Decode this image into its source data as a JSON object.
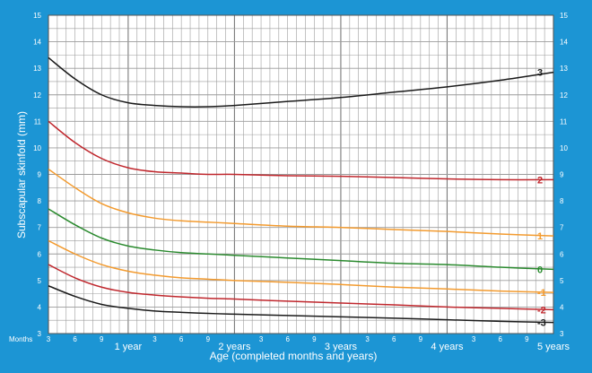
{
  "chart_data": {
    "type": "line",
    "title": "",
    "xlabel": "Age (completed months and years)",
    "ylabel": "Subscapular skinfold (mm)",
    "x_unit_label": "Months",
    "xlim": [
      3,
      60
    ],
    "ylim": [
      3,
      15
    ],
    "y_ticks": [
      3,
      4,
      5,
      6,
      7,
      8,
      9,
      10,
      11,
      12,
      13,
      14,
      15
    ],
    "x_ticks": [
      {
        "month": 3,
        "label": "3"
      },
      {
        "month": 6,
        "label": "6"
      },
      {
        "month": 9,
        "label": "9"
      },
      {
        "month": 12,
        "label": "1 year"
      },
      {
        "month": 15,
        "label": "3"
      },
      {
        "month": 18,
        "label": "6"
      },
      {
        "month": 21,
        "label": "9"
      },
      {
        "month": 24,
        "label": "2 years"
      },
      {
        "month": 27,
        "label": "3"
      },
      {
        "month": 30,
        "label": "6"
      },
      {
        "month": 33,
        "label": "9"
      },
      {
        "month": 36,
        "label": "3 years"
      },
      {
        "month": 39,
        "label": "3"
      },
      {
        "month": 42,
        "label": "6"
      },
      {
        "month": 45,
        "label": "9"
      },
      {
        "month": 48,
        "label": "4 years"
      },
      {
        "month": 51,
        "label": "3"
      },
      {
        "month": 54,
        "label": "6"
      },
      {
        "month": 57,
        "label": "9"
      },
      {
        "month": 60,
        "label": "5 years"
      }
    ],
    "x": [
      3,
      6,
      9,
      12,
      15,
      18,
      21,
      24,
      30,
      36,
      42,
      48,
      54,
      60
    ],
    "series": [
      {
        "name": "3",
        "color": "#1a1a1a",
        "values": [
          13.4,
          12.6,
          12.0,
          11.7,
          11.6,
          11.55,
          11.55,
          11.6,
          11.75,
          11.9,
          12.1,
          12.3,
          12.55,
          12.85
        ]
      },
      {
        "name": "2",
        "color": "#c0272d",
        "values": [
          11.0,
          10.2,
          9.6,
          9.25,
          9.1,
          9.05,
          9.0,
          9.0,
          8.95,
          8.93,
          8.88,
          8.83,
          8.8,
          8.8
        ]
      },
      {
        "name": "1",
        "color": "#f39b2f",
        "values": [
          9.2,
          8.5,
          7.9,
          7.55,
          7.35,
          7.25,
          7.2,
          7.15,
          7.05,
          7.0,
          6.92,
          6.85,
          6.75,
          6.68
        ]
      },
      {
        "name": "0",
        "color": "#2a8a2e",
        "values": [
          7.7,
          7.1,
          6.6,
          6.3,
          6.15,
          6.05,
          6.0,
          5.95,
          5.85,
          5.75,
          5.65,
          5.6,
          5.5,
          5.42
        ]
      },
      {
        "name": "-1",
        "color": "#f39b2f",
        "values": [
          6.5,
          6.0,
          5.6,
          5.35,
          5.2,
          5.1,
          5.05,
          5.0,
          4.93,
          4.85,
          4.75,
          4.68,
          4.6,
          4.55
        ]
      },
      {
        "name": "-2",
        "color": "#c0272d",
        "values": [
          5.6,
          5.1,
          4.75,
          4.55,
          4.45,
          4.38,
          4.33,
          4.3,
          4.22,
          4.15,
          4.08,
          4.0,
          3.95,
          3.9
        ]
      },
      {
        "name": "-3",
        "color": "#1a1a1a",
        "values": [
          4.8,
          4.4,
          4.1,
          3.95,
          3.85,
          3.8,
          3.76,
          3.73,
          3.68,
          3.63,
          3.58,
          3.52,
          3.46,
          3.42
        ]
      }
    ],
    "grid": true,
    "legend": "right-end labels"
  }
}
